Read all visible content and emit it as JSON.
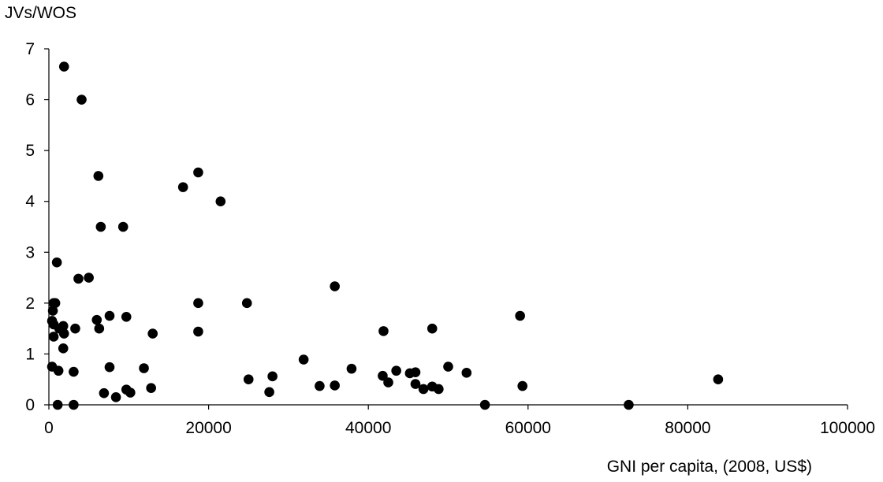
{
  "chart_data": {
    "type": "scatter",
    "title": "",
    "ylabel": "JVs/WOS",
    "xlabel": "GNI per capita, (2008, US$)",
    "xlim": [
      0,
      100000
    ],
    "ylim": [
      0,
      7
    ],
    "x_ticks": [
      0,
      20000,
      40000,
      60000,
      80000,
      100000
    ],
    "y_ticks": [
      0,
      1,
      2,
      3,
      4,
      5,
      6,
      7
    ],
    "grid": false,
    "legend": "none",
    "marker_color": "#000000",
    "series": [
      {
        "points": [
          [
            1900,
            6.65
          ],
          [
            4100,
            6.0
          ],
          [
            6200,
            4.5
          ],
          [
            6500,
            3.5
          ],
          [
            9300,
            3.5
          ],
          [
            16800,
            4.28
          ],
          [
            18700,
            4.57
          ],
          [
            21500,
            4.0
          ],
          [
            1000,
            2.8
          ],
          [
            3700,
            2.48
          ],
          [
            5000,
            2.5
          ],
          [
            800,
            2.0
          ],
          [
            600,
            2.0
          ],
          [
            18700,
            2.0
          ],
          [
            24800,
            2.0
          ],
          [
            35800,
            2.33
          ],
          [
            500,
            1.85
          ],
          [
            400,
            1.65
          ],
          [
            600,
            1.58
          ],
          [
            1300,
            1.5
          ],
          [
            1800,
            1.55
          ],
          [
            1900,
            1.4
          ],
          [
            600,
            1.34
          ],
          [
            3300,
            1.5
          ],
          [
            6000,
            1.67
          ],
          [
            6300,
            1.5
          ],
          [
            7600,
            1.75
          ],
          [
            9700,
            1.73
          ],
          [
            13000,
            1.4
          ],
          [
            18700,
            1.44
          ],
          [
            1800,
            1.11
          ],
          [
            41900,
            1.45
          ],
          [
            48000,
            1.5
          ],
          [
            59000,
            1.75
          ],
          [
            400,
            0.75
          ],
          [
            1200,
            0.67
          ],
          [
            3100,
            0.65
          ],
          [
            7600,
            0.74
          ],
          [
            11900,
            0.72
          ],
          [
            31900,
            0.89
          ],
          [
            37900,
            0.71
          ],
          [
            41800,
            0.57
          ],
          [
            43500,
            0.67
          ],
          [
            45200,
            0.62
          ],
          [
            45900,
            0.64
          ],
          [
            50000,
            0.75
          ],
          [
            52300,
            0.63
          ],
          [
            6900,
            0.23
          ],
          [
            8400,
            0.15
          ],
          [
            9700,
            0.3
          ],
          [
            10200,
            0.24
          ],
          [
            12800,
            0.33
          ],
          [
            25000,
            0.5
          ],
          [
            28000,
            0.56
          ],
          [
            27600,
            0.25
          ],
          [
            33900,
            0.37
          ],
          [
            35800,
            0.38
          ],
          [
            42500,
            0.44
          ],
          [
            45900,
            0.41
          ],
          [
            46900,
            0.31
          ],
          [
            48000,
            0.36
          ],
          [
            48800,
            0.31
          ],
          [
            59300,
            0.37
          ],
          [
            83800,
            0.5
          ],
          [
            1100,
            0.0
          ],
          [
            3100,
            0.0
          ],
          [
            54600,
            0.0
          ],
          [
            72600,
            0.0
          ]
        ]
      }
    ]
  }
}
